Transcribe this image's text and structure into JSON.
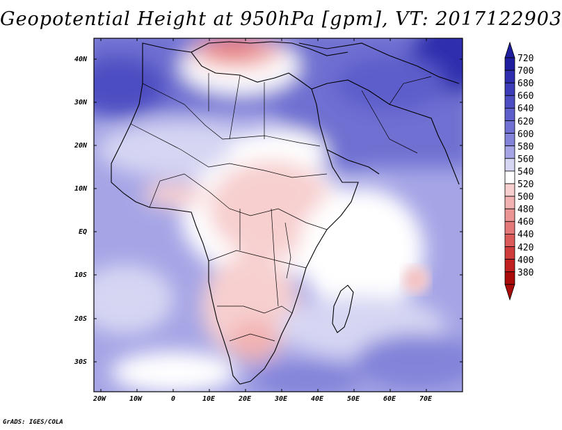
{
  "title": "Geopotential Height at 950hPa [gpm], VT: 2017122903",
  "credit": "GrADS: IGES/COLA",
  "map": {
    "variable": "Geopotential Height",
    "level": "950hPa",
    "units": "gpm",
    "valid_time": "2017122903",
    "lat_labels": [
      "40N",
      "30N",
      "20N",
      "10N",
      "EQ",
      "10S",
      "20S",
      "30S"
    ],
    "lon_labels": [
      "20W",
      "10W",
      "0",
      "10E",
      "20E",
      "30E",
      "40E",
      "50E",
      "60E",
      "70E"
    ]
  },
  "colorbar": {
    "labels": [
      "720",
      "700",
      "680",
      "660",
      "640",
      "620",
      "600",
      "580",
      "560",
      "540",
      "520",
      "500",
      "480",
      "460",
      "440",
      "420",
      "400",
      "380"
    ],
    "colors": [
      "#1e1e9e",
      "#2e2eae",
      "#3c3cb8",
      "#4d4dc2",
      "#5d5dcb",
      "#7070d2",
      "#8383d9",
      "#a5a5e6",
      "#d6d6f3",
      "#ffffff",
      "#f7cfcf",
      "#f2b2b2",
      "#ec9595",
      "#e47878",
      "#db5a5a",
      "#cf3c3c",
      "#c02020",
      "#a90a0a"
    ],
    "top_arrow_color": "#1e1e9e",
    "bottom_arrow_color": "#a90a0a"
  }
}
